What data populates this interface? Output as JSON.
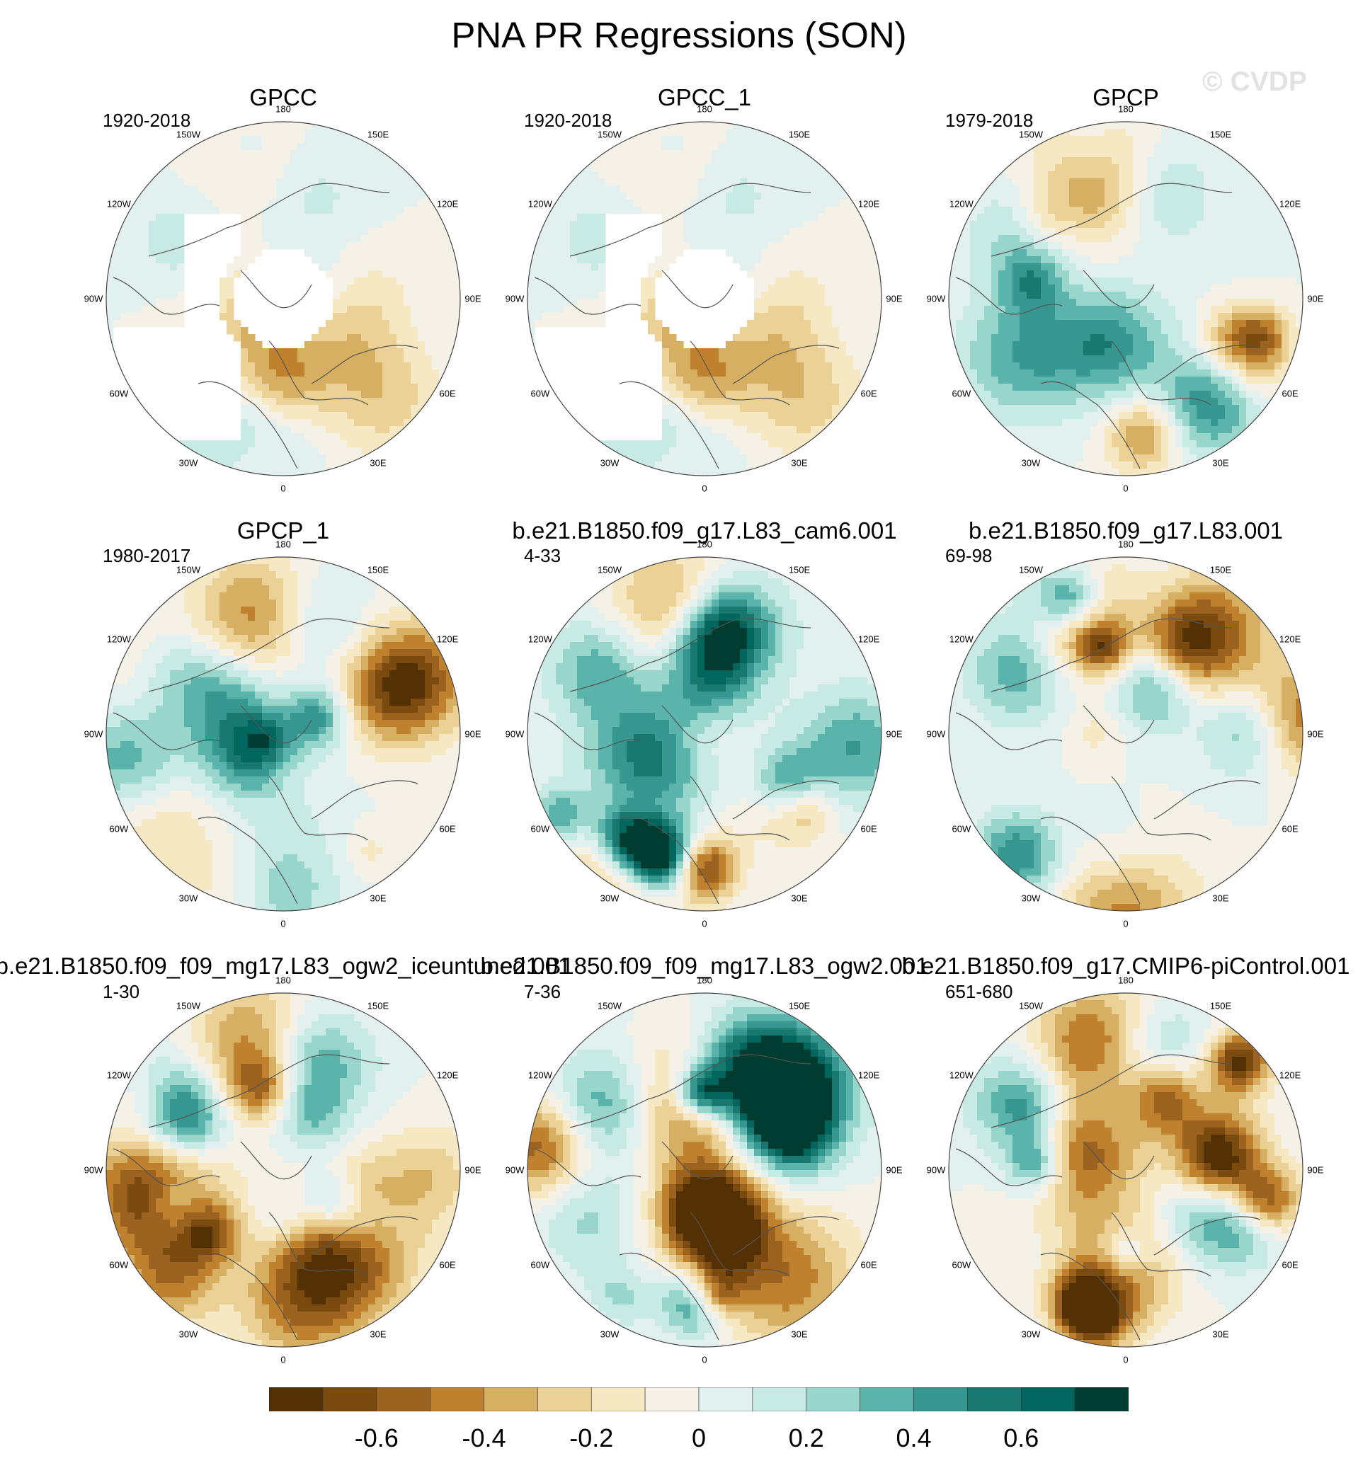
{
  "figure": {
    "title": "PNA PR Regressions (SON)",
    "watermark": "© CVDP"
  },
  "chart_data": {
    "type": "polar-map",
    "projection": "north polar stereographic",
    "variable": "PR regression on PNA index",
    "season": "SON",
    "longitude_labels": [
      "180",
      "150E",
      "120E",
      "90E",
      "60E",
      "30E",
      "0",
      "30W",
      "60W",
      "90W",
      "120W",
      "150W"
    ],
    "colorbar": {
      "levels": [
        -0.7,
        -0.6,
        -0.5,
        -0.4,
        -0.3,
        -0.2,
        -0.1,
        0,
        0.1,
        0.2,
        0.3,
        0.4,
        0.5,
        0.6,
        0.7
      ],
      "tick_labels": [
        "-0.6",
        "-0.4",
        "-0.2",
        "0",
        "0.2",
        "0.4",
        "0.6"
      ],
      "colors": [
        "#543005",
        "#7a4a0e",
        "#9c6220",
        "#bf812d",
        "#d6af63",
        "#ebd195",
        "#f6e8c3",
        "#f5f1e6",
        "#e2f1ef",
        "#c7eae5",
        "#98d6cb",
        "#5ab4ac",
        "#35978f",
        "#18776e",
        "#01665e",
        "#003c30"
      ]
    },
    "panels": [
      {
        "title": "GPCC",
        "period": "1920-2018",
        "dataset_type": "observed",
        "strength": 0.25,
        "seed": 11,
        "land_only": true
      },
      {
        "title": "GPCC_1",
        "period": "1920-2018",
        "dataset_type": "observed",
        "strength": 0.25,
        "seed": 11,
        "land_only": true
      },
      {
        "title": "GPCP",
        "period": "1979-2018",
        "dataset_type": "observed",
        "strength": 0.5,
        "seed": 23,
        "land_only": false
      },
      {
        "title": "GPCP_1",
        "period": "1980-2017",
        "dataset_type": "observed",
        "strength": 0.5,
        "seed": 29,
        "land_only": false
      },
      {
        "title": "b.e21.B1850.f09_g17.L83_cam6.001",
        "period": "4-33",
        "dataset_type": "model",
        "strength": 0.75,
        "seed": 37,
        "land_only": false
      },
      {
        "title": "b.e21.B1850.f09_g17.L83.001",
        "period": "69-98",
        "dataset_type": "model",
        "strength": 0.8,
        "seed": 41,
        "land_only": false
      },
      {
        "title": "b.e21.B1850.f09_f09_mg17.L83_ogw2_iceuntuned.001",
        "period": "1-30",
        "dataset_type": "model",
        "strength": 0.8,
        "seed": 53,
        "land_only": false
      },
      {
        "title": "b.e21.B1850.f09_f09_mg17.L83_ogw2.001",
        "period": "7-36",
        "dataset_type": "model",
        "strength": 0.8,
        "seed": 59,
        "land_only": false
      },
      {
        "title": "b.e21.B1850.f09_g17.CMIP6-piControl.001",
        "period": "651-680",
        "dataset_type": "model",
        "strength": 0.8,
        "seed": 67,
        "land_only": false
      }
    ]
  }
}
